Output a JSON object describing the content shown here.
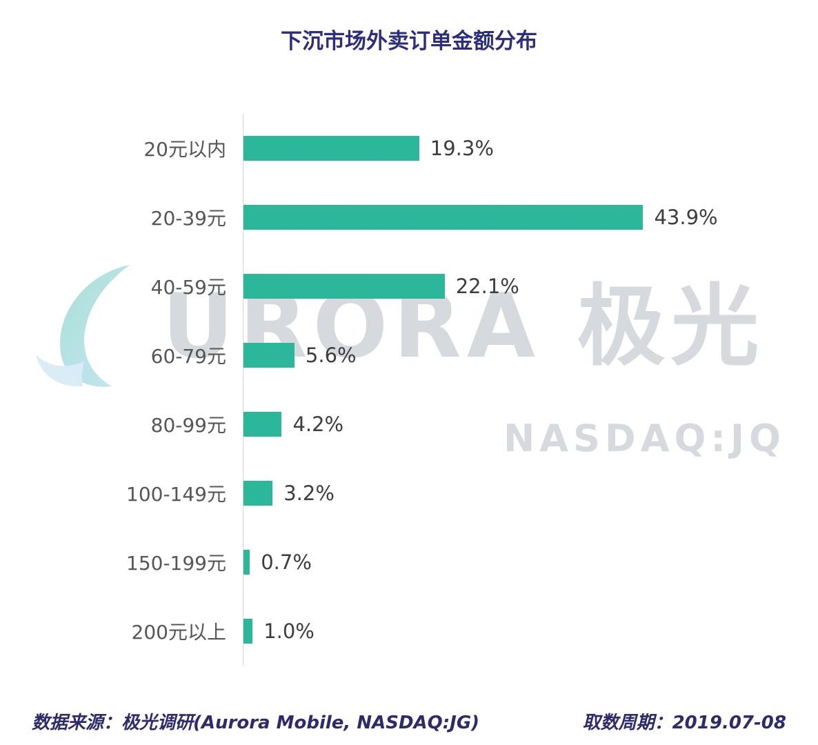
{
  "title": "下沉市场外卖订单金额分布",
  "watermark": {
    "brand": "URORA 极光",
    "nasdaq": "NASDAQ:JQ"
  },
  "footer": {
    "source": "数据来源：极光调研(Aurora Mobile, NASDAQ:JG)",
    "period": "取数周期：2019.07-08"
  },
  "colors": {
    "bar": "#2bb89a",
    "title": "#2d2d80",
    "footer_text": "#2b2b6e",
    "watermark": "#d6dadf"
  },
  "chart_data": {
    "type": "bar",
    "orientation": "horizontal",
    "title": "下沉市场外卖订单金额分布",
    "categories": [
      "20元以内",
      "20-39元",
      "40-59元",
      "60-79元",
      "80-99元",
      "100-149元",
      "150-199元",
      "200元以上"
    ],
    "values": [
      19.3,
      43.9,
      22.1,
      5.6,
      4.2,
      3.2,
      0.7,
      1.0
    ],
    "value_labels": [
      "19.3%",
      "43.9%",
      "22.1%",
      "5.6%",
      "4.2%",
      "3.2%",
      "0.7%",
      "1.0%"
    ],
    "xlabel": "",
    "ylabel": "",
    "xlim": [
      0,
      50
    ],
    "grid": false,
    "legend": null
  }
}
